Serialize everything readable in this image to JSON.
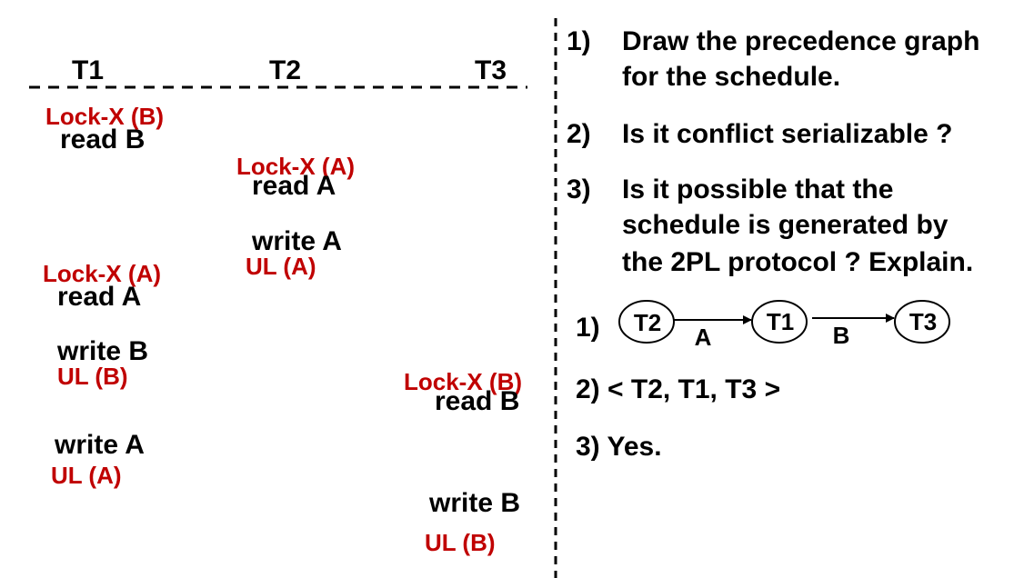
{
  "schedule": {
    "headers": {
      "t1": "T1",
      "t2": "T2",
      "t3": "T3"
    },
    "ops": {
      "t1_lock_b": "Lock-X (B)",
      "t1_read_b": "read  B",
      "t2_lock_a": "Lock-X (A)",
      "t2_read_a": "read  A",
      "t2_write_a": "write  A",
      "t2_ul_a": "UL (A)",
      "t1_lock_a": "Lock-X (A)",
      "t1_read_a": "read  A",
      "t1_write_b": "write  B",
      "t1_ul_b": "UL (B)",
      "t3_lock_b": "Lock-X (B)",
      "t3_read_b": "read  B",
      "t1_write_a": "write  A",
      "t1_ul_a": "UL (A)",
      "t3_write_b": "write  B",
      "t3_ul_b": "UL (B)"
    }
  },
  "questions": [
    {
      "num": "1)",
      "lines": [
        "Draw the precedence graph",
        "for the schedule."
      ]
    },
    {
      "num": "2)",
      "lines": [
        "Is it conflict serializable ?"
      ]
    },
    {
      "num": "3)",
      "lines": [
        "Is it possible that the",
        "schedule is generated by",
        "the 2PL protocol ? Explain."
      ]
    }
  ],
  "answers": {
    "a1_label": "1)",
    "graph": {
      "nodes": [
        "T2",
        "T1",
        "T3"
      ],
      "edges": [
        {
          "from": "T2",
          "to": "T1",
          "label": "A"
        },
        {
          "from": "T1",
          "to": "T3",
          "label": "B"
        }
      ]
    },
    "a2": "2) < T2,  T1,  T3 >",
    "a3": "3) Yes."
  },
  "colors": {
    "text": "#000000",
    "lock": "#c00000",
    "background": "#ffffff"
  }
}
